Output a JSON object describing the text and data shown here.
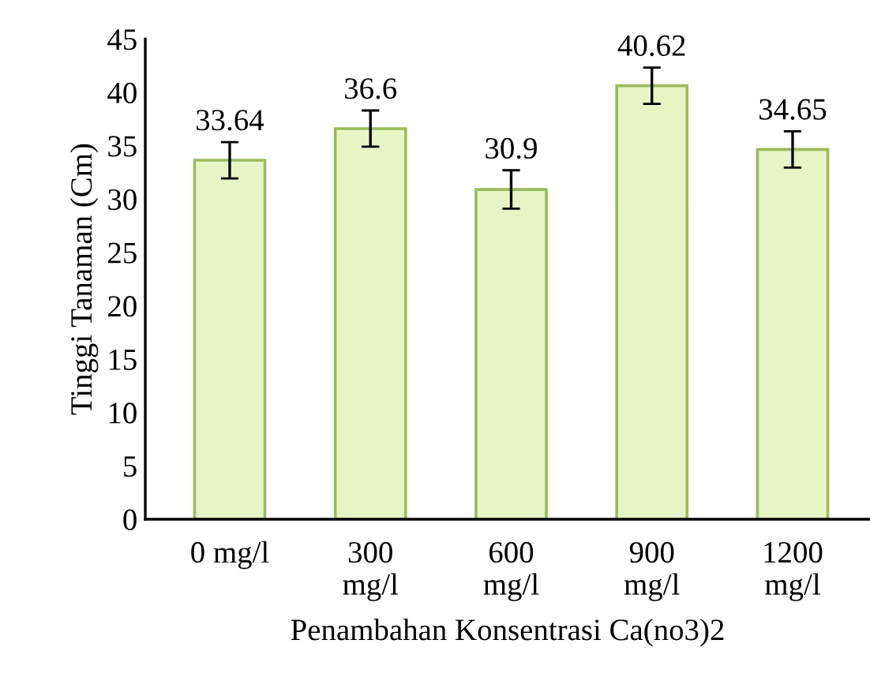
{
  "chart_data": {
    "type": "bar",
    "xlabel": "Penambahan Konsentrasi Ca(no3)2",
    "ylabel": "Tinggi Tanaman (Cm)",
    "categories": [
      "0 mg/l",
      "300\nmg/l",
      "600\nmg/l",
      "900\nmg/l",
      "1200\nmg/l"
    ],
    "values": [
      33.64,
      36.6,
      30.9,
      40.62,
      34.65
    ],
    "errors": [
      1.7,
      1.7,
      1.8,
      1.7,
      1.7
    ],
    "color": "#e6f5c6",
    "ylim": [
      0,
      45
    ],
    "yticks": [
      0,
      5,
      10,
      15,
      20,
      25,
      30,
      35,
      40,
      45
    ],
    "grid": false,
    "data_labels": true
  }
}
